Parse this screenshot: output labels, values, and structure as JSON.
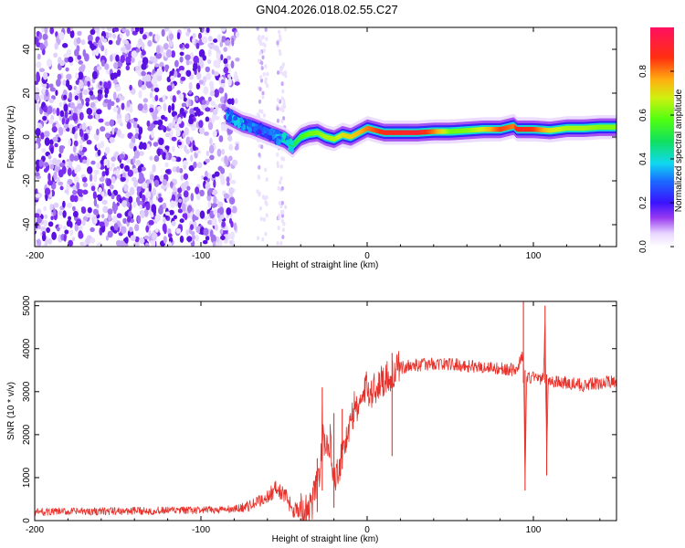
{
  "title": "GN04.2026.018.02.55.C27",
  "colors": {
    "snr_line": "#e8312a",
    "background": "#ffffff",
    "axis": "#000000"
  },
  "chart_data": [
    {
      "type": "heatmap",
      "name": "spectrogram",
      "xlabel": "Height of straight line (km)",
      "ylabel": "Frequency (Hz)",
      "xlim": [
        -200,
        150
      ],
      "ylim": [
        -50,
        50
      ],
      "x_ticks": [
        -200,
        -100,
        0,
        100
      ],
      "y_ticks": [
        -40,
        -20,
        0,
        20,
        40
      ],
      "x_tick_labels": [
        "-200",
        "-100",
        "0",
        "100"
      ],
      "y_tick_labels": [
        "-40",
        "-20",
        "0",
        "20",
        "40"
      ],
      "ridge": {
        "x": [
          -85,
          -80,
          -75,
          -70,
          -65,
          -60,
          -55,
          -50,
          -45,
          -40,
          -35,
          -30,
          -25,
          -20,
          -15,
          -10,
          -5,
          0,
          10,
          20,
          30,
          40,
          50,
          60,
          70,
          80,
          88,
          90,
          100,
          110,
          120,
          130,
          140,
          150
        ],
        "y": [
          10,
          8,
          6,
          5,
          3.5,
          2,
          0.5,
          -1,
          -4,
          0,
          1.5,
          2,
          0,
          -1,
          1,
          0,
          2,
          4,
          2,
          2,
          2,
          2.5,
          2.5,
          3,
          3.5,
          3.5,
          5,
          3.5,
          3.5,
          3,
          4,
          4,
          4.5,
          4.5
        ],
        "amplitude": [
          0.35,
          0.4,
          0.4,
          0.35,
          0.3,
          0.3,
          0.35,
          0.45,
          0.5,
          0.55,
          0.6,
          0.62,
          0.65,
          0.65,
          0.7,
          0.72,
          0.75,
          0.8,
          0.88,
          0.9,
          0.92,
          0.8,
          0.6,
          0.62,
          0.7,
          0.85,
          0.8,
          0.9,
          0.85,
          0.7,
          0.65,
          0.65,
          0.62,
          0.62
        ]
      },
      "noise_region": [
        -200,
        -82
      ],
      "colorbar": {
        "label": "Normalized spectral amplitude",
        "range": [
          0,
          1
        ],
        "ticks": [
          0.0,
          0.2,
          0.4,
          0.6,
          0.8
        ],
        "tick_labels": [
          "0.0",
          "0.2",
          "0.4",
          "0.6",
          "0.8"
        ]
      }
    },
    {
      "type": "line",
      "name": "snr",
      "xlabel": "Height of straight line (km)",
      "ylabel": "SNR (10 * v/v)",
      "xlim": [
        -200,
        150
      ],
      "ylim": [
        0,
        5100
      ],
      "x_ticks": [
        -200,
        -100,
        0,
        100
      ],
      "y_ticks": [
        0,
        1000,
        2000,
        3000,
        4000,
        5000
      ],
      "x_tick_labels": [
        "-200",
        "-100",
        "0",
        "100"
      ],
      "y_tick_labels": [
        "0",
        "1000",
        "2000",
        "3000",
        "4000",
        "5000"
      ],
      "series": [
        {
          "name": "SNR",
          "x": [
            -200,
            -150,
            -100,
            -80,
            -70,
            -60,
            -55,
            -50,
            -45,
            -40,
            -35,
            -30,
            -28,
            -27,
            -25,
            -22,
            -20,
            -18,
            -15,
            -12,
            -10,
            -8,
            -5,
            -2,
            0,
            3,
            5,
            10,
            15,
            20,
            25,
            30,
            40,
            50,
            60,
            70,
            80,
            90,
            93,
            94,
            95,
            96,
            100,
            106,
            107,
            108,
            109,
            110,
            120,
            130,
            140,
            150
          ],
          "y": [
            200,
            220,
            240,
            260,
            350,
            550,
            750,
            600,
            300,
            250,
            150,
            900,
            1300,
            2300,
            1500,
            1900,
            1000,
            1100,
            1600,
            2000,
            2200,
            2600,
            2700,
            2900,
            3100,
            3000,
            3100,
            3300,
            3400,
            3550,
            3600,
            3620,
            3650,
            3640,
            3600,
            3570,
            3540,
            3500,
            3800,
            3900,
            1000,
            3300,
            3350,
            3300,
            4500,
            1500,
            3300,
            3250,
            3200,
            3150,
            3200,
            3250
          ],
          "spikes": [
            {
              "x": -30,
              "ymin": 200,
              "ymax": 1450
            },
            {
              "x": -27,
              "ymin": 700,
              "ymax": 3100
            },
            {
              "x": -20,
              "ymin": 300,
              "ymax": 2500
            },
            {
              "x": -15,
              "ymin": 1200,
              "ymax": 2600
            },
            {
              "x": 15,
              "ymin": 1500,
              "ymax": 3900
            },
            {
              "x": 94,
              "ymin": 3200,
              "ymax": 5100
            },
            {
              "x": 95,
              "ymin": 700,
              "ymax": 3500
            },
            {
              "x": 107,
              "ymin": 3200,
              "ymax": 5000
            },
            {
              "x": 108,
              "ymin": 1050,
              "ymax": 3400
            }
          ]
        }
      ]
    }
  ]
}
